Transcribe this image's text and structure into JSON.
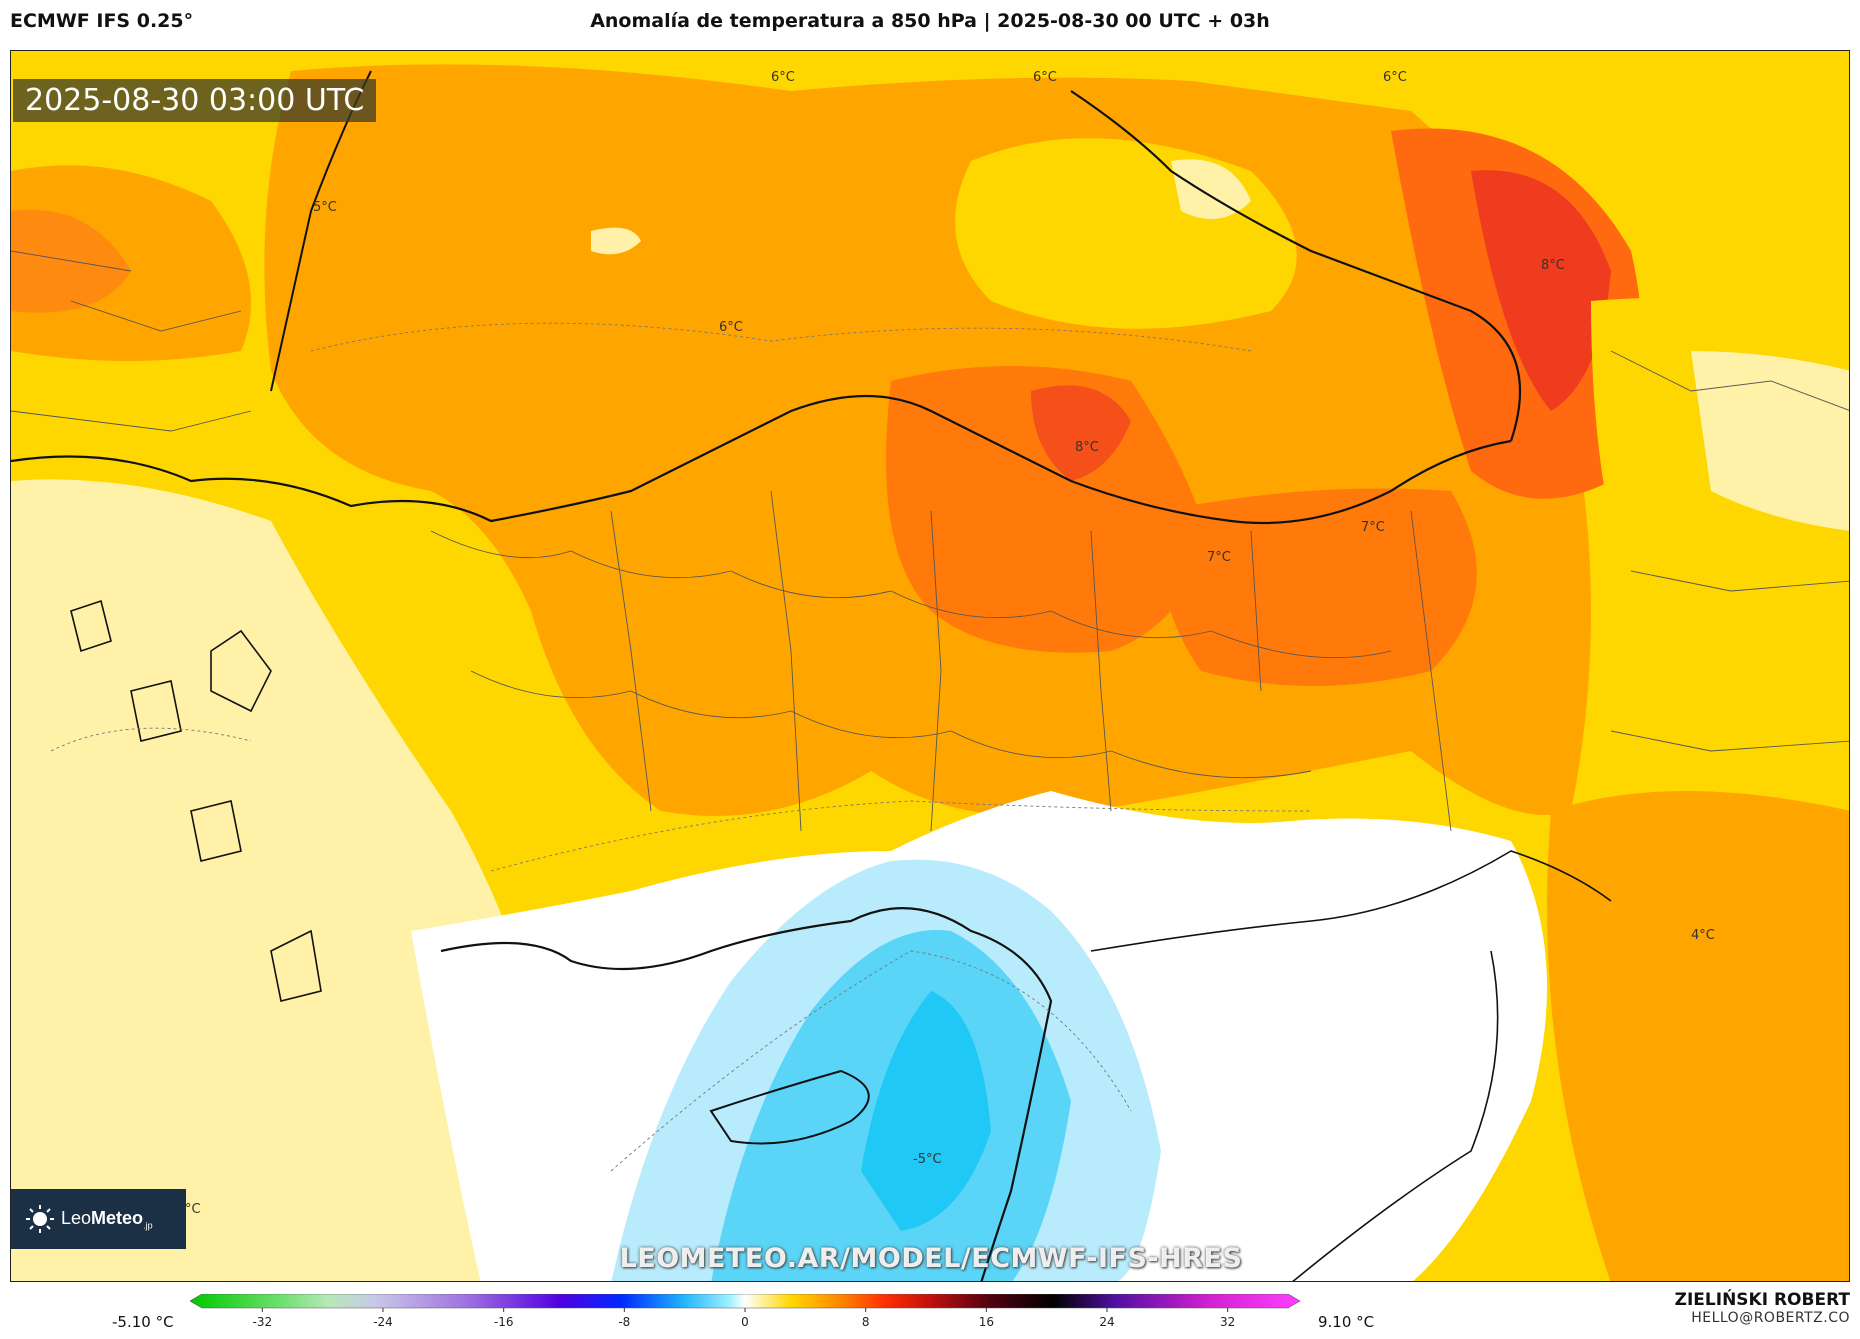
{
  "header": {
    "model": "ECMWF IFS 0.25°",
    "title": "Anomalía de temperatura a 850 hPa | 2025-08-30 00 UTC + 03h"
  },
  "map": {
    "valid_time": "2025-08-30 03:00 UTC",
    "watermark": "LEOMETEO.AR/MODEL/ECMWF-IFS-HRES",
    "contour_labels": [
      "6°C",
      "6°C",
      "6°C",
      "5°C",
      "6°C",
      "8°C",
      "8°C",
      "7°C",
      "7°C",
      "4°C",
      "-5°C",
      "°C"
    ],
    "colors": {
      "deep_orange": "#ff7a0a",
      "orange": "#ffa500",
      "amber": "#ffc000",
      "yellow": "#ffd700",
      "pale_yellow": "#fff2a8",
      "red": "#f03c1e",
      "white": "#ffffff",
      "light_blue": "#b8ecfc",
      "blue": "#5ad5f7",
      "deep_blue": "#20c8f5"
    }
  },
  "logo": {
    "brand_light": "Leo",
    "brand_bold": "Meteo",
    "suffix": ".jp"
  },
  "colorbar": {
    "min_label": "-5.10 °C",
    "max_label": "9.10 °C",
    "ticks": [
      "-32",
      "-24",
      "-16",
      "-8",
      "0",
      "8",
      "16",
      "24",
      "32"
    ],
    "tick_values": [
      -32,
      -24,
      -16,
      -8,
      0,
      8,
      16,
      24,
      32
    ],
    "range": [
      -36,
      36
    ],
    "stops": [
      {
        "v": -36,
        "c": "#00c800"
      },
      {
        "v": -30,
        "c": "#70e070"
      },
      {
        "v": -27,
        "c": "#b8e8b8"
      },
      {
        "v": -24,
        "c": "#c8c8e8"
      },
      {
        "v": -18,
        "c": "#a070e0"
      },
      {
        "v": -12,
        "c": "#5000e0"
      },
      {
        "v": -8,
        "c": "#0028ff"
      },
      {
        "v": -4,
        "c": "#20b4ff"
      },
      {
        "v": -1,
        "c": "#a0f0ff"
      },
      {
        "v": 0,
        "c": "#ffffff"
      },
      {
        "v": 1,
        "c": "#fff2a8"
      },
      {
        "v": 3,
        "c": "#ffd700"
      },
      {
        "v": 6,
        "c": "#ff8c00"
      },
      {
        "v": 9,
        "c": "#ff3000"
      },
      {
        "v": 12,
        "c": "#c01010"
      },
      {
        "v": 16,
        "c": "#500010"
      },
      {
        "v": 20,
        "c": "#000000"
      },
      {
        "v": 24,
        "c": "#5010a0"
      },
      {
        "v": 30,
        "c": "#d020d0"
      },
      {
        "v": 36,
        "c": "#ff40ff"
      }
    ]
  },
  "author": {
    "name": "ZIELIŃSKI ROBERT",
    "email": "HELLO@ROBERTZ.CO"
  }
}
